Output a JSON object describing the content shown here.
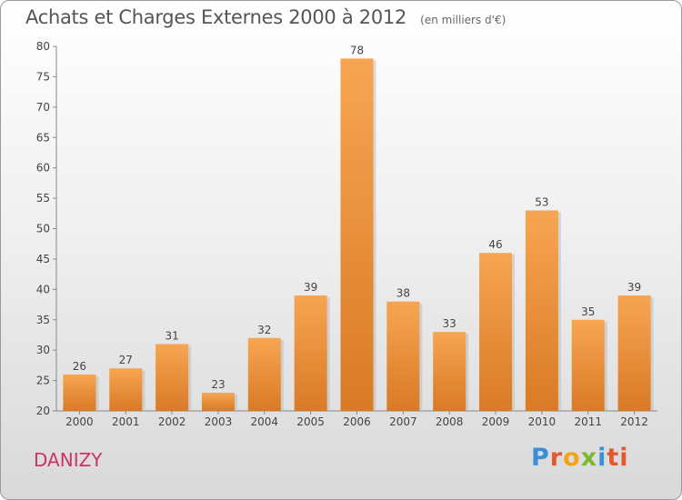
{
  "header": {
    "title": "Achats et Charges Externes 2000 à 2012",
    "unit": "(en milliers d'€)"
  },
  "footer": {
    "commune": "DANIZY",
    "logo_letters": [
      "P",
      "r",
      "o",
      "x",
      "i",
      "ti"
    ]
  },
  "colors": {
    "bar_light": "#f7a552",
    "bar_dark": "#d97a26",
    "commune": "#cc3366"
  },
  "chart_data": {
    "type": "bar",
    "title": "Achats et Charges Externes 2000 à 2012",
    "subtitle": "(en milliers d'€)",
    "categories": [
      "2000",
      "2001",
      "2002",
      "2003",
      "2004",
      "2005",
      "2006",
      "2007",
      "2008",
      "2009",
      "2010",
      "2011",
      "2012"
    ],
    "values": [
      26,
      27,
      31,
      23,
      32,
      39,
      78,
      38,
      33,
      46,
      53,
      35,
      39
    ],
    "ylim": [
      20,
      80
    ],
    "yticks": [
      20,
      25,
      30,
      35,
      40,
      45,
      50,
      55,
      60,
      65,
      70,
      75,
      80
    ],
    "grid": false,
    "legend": "none"
  }
}
